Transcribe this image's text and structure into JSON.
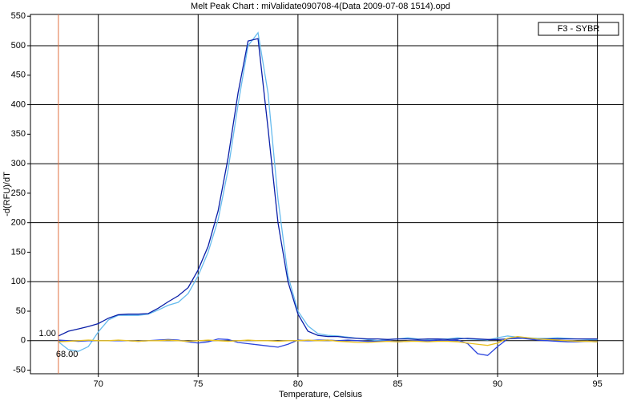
{
  "chart_data": {
    "type": "line",
    "title": "Melt Peak Chart : miValidate090708-4(Data 2009-07-08 1514).opd",
    "x_label": "Temperature, Celsius",
    "y_label": "-d(RFU)/dT",
    "legend_label": "F3 - SYBR",
    "x": [
      68,
      68.5,
      69,
      69.5,
      70,
      70.5,
      71,
      71.5,
      72,
      72.5,
      73,
      73.5,
      74,
      74.5,
      75,
      75.5,
      76,
      76.5,
      77,
      77.5,
      78,
      78.5,
      79,
      79.5,
      80,
      80.5,
      81,
      81.5,
      82,
      82.5,
      83,
      83.5,
      84,
      84.5,
      85,
      85.5,
      86,
      86.5,
      87,
      87.5,
      88,
      88.5,
      89,
      89.5,
      90,
      90.5,
      91,
      91.5,
      92,
      92.5,
      93,
      93.5,
      94,
      94.5,
      95
    ],
    "series": [
      {
        "color": "#66bbee",
        "values": [
          -2,
          -15,
          -18,
          -10,
          15,
          35,
          43,
          43,
          43,
          45,
          52,
          60,
          65,
          80,
          110,
          150,
          205,
          290,
          400,
          500,
          522,
          420,
          240,
          110,
          50,
          25,
          12,
          9,
          8,
          6,
          4,
          2,
          0,
          2,
          3,
          5,
          3,
          2,
          3,
          3,
          5,
          3,
          2,
          1,
          5,
          8,
          6,
          5,
          4,
          4,
          5,
          4,
          3,
          2,
          2
        ]
      },
      {
        "color": "#0a1fa8",
        "values": [
          8,
          16,
          20,
          24,
          29,
          38,
          44,
          45,
          45,
          46,
          55,
          66,
          76,
          90,
          120,
          160,
          220,
          310,
          420,
          508,
          512,
          360,
          200,
          100,
          45,
          16,
          9,
          7,
          7,
          5,
          4,
          3,
          3,
          2,
          3,
          3,
          2,
          3,
          3,
          2,
          3,
          4,
          3,
          2,
          2,
          3,
          4,
          4,
          3,
          3,
          3,
          3,
          3,
          3,
          3
        ]
      },
      {
        "color": "#2a44dd",
        "values": [
          1,
          0,
          -1,
          0,
          0,
          0,
          0,
          0,
          -1,
          0,
          1,
          2,
          1,
          -2,
          -4,
          -2,
          3,
          2,
          -3,
          -5,
          -7,
          -9,
          -11,
          -6,
          1,
          0,
          1,
          1,
          0,
          1,
          0,
          -1,
          -1,
          0,
          -2,
          -1,
          0,
          0,
          1,
          0,
          1,
          -5,
          -22,
          -25,
          -10,
          3,
          5,
          3,
          1,
          0,
          -1,
          -2,
          -2,
          -1,
          -2
        ]
      },
      {
        "color": "#e8c020",
        "values": [
          -2,
          -1,
          0,
          1,
          0,
          0,
          1,
          0,
          -1,
          0,
          0,
          1,
          0,
          -1,
          0,
          1,
          0,
          -1,
          0,
          1,
          0,
          0,
          -1,
          0,
          0,
          1,
          0,
          1,
          -1,
          -2,
          -3,
          -3,
          -2,
          -1,
          -2,
          -1,
          -1,
          -2,
          -1,
          -1,
          -2,
          -4,
          -6,
          -8,
          -4,
          4,
          7,
          5,
          3,
          2,
          1,
          0,
          -1,
          -1,
          -2
        ]
      }
    ],
    "cursor": {
      "x": {
        "value": 68,
        "label": "68.00"
      },
      "y": {
        "value": 1,
        "label": "1.00"
      },
      "color": "#e07040"
    },
    "xlim": [
      66.6,
      96.3
    ],
    "ylim": [
      -56,
      553
    ],
    "xticks": [
      70,
      75,
      80,
      85,
      90,
      95
    ],
    "yticks": [
      -50,
      0,
      50,
      100,
      150,
      200,
      250,
      300,
      350,
      400,
      450,
      500,
      550
    ],
    "grid": true
  }
}
